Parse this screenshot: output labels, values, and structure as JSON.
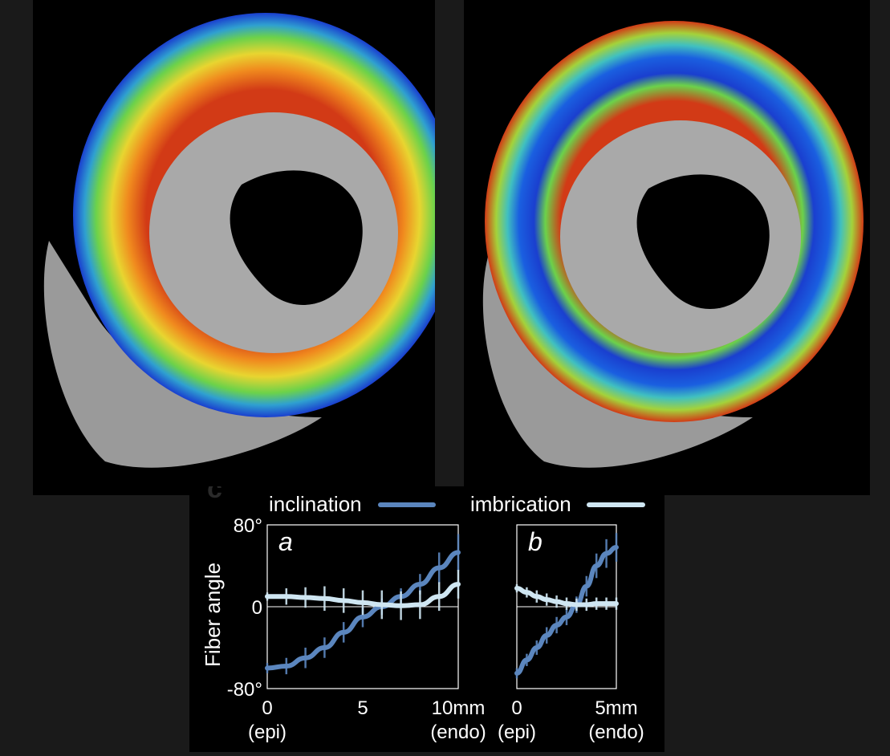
{
  "panel_label": "c",
  "colors": {
    "inclination": "#5b86be",
    "imbrication": "#cfe6f2",
    "axis": "#ffffff"
  },
  "chart_data": [
    {
      "type": "line",
      "panel": "a",
      "ylabel": "Fiber angle",
      "ylim": [
        -80,
        80
      ],
      "xlim": [
        0,
        10
      ],
      "xticks": [
        {
          "value": 0,
          "label": "0",
          "sub": "(epi)"
        },
        {
          "value": 5,
          "label": "5",
          "sub": ""
        },
        {
          "value": 10,
          "label": "10mm",
          "sub": "(endo)"
        }
      ],
      "yticks": [
        {
          "value": 80,
          "label": "80°"
        },
        {
          "value": 0,
          "label": "0"
        },
        {
          "value": -80,
          "label": "-80°"
        }
      ],
      "series": [
        {
          "name": "inclination",
          "x": [
            0,
            1,
            2,
            3,
            4,
            5,
            6,
            7,
            8,
            9,
            10
          ],
          "y": [
            -60,
            -58,
            -50,
            -40,
            -25,
            -10,
            0,
            10,
            22,
            38,
            53
          ],
          "err": [
            5,
            8,
            10,
            10,
            10,
            10,
            8,
            8,
            10,
            15,
            18
          ]
        },
        {
          "name": "imbrication",
          "x": [
            0,
            1,
            2,
            3,
            4,
            5,
            6,
            7,
            8,
            9,
            10
          ],
          "y": [
            10,
            10,
            9,
            8,
            6,
            4,
            2,
            1,
            2,
            10,
            22
          ],
          "err": [
            4,
            8,
            10,
            12,
            12,
            12,
            14,
            14,
            14,
            14,
            14
          ]
        }
      ]
    },
    {
      "type": "line",
      "panel": "b",
      "xlim": [
        0,
        5
      ],
      "ylim": [
        -80,
        80
      ],
      "xticks": [
        {
          "value": 0,
          "label": "0",
          "sub": "(epi)"
        },
        {
          "value": 5,
          "label": "5mm",
          "sub": "(endo)"
        }
      ],
      "series": [
        {
          "name": "inclination",
          "x": [
            0,
            0.5,
            1,
            1.5,
            2,
            2.5,
            3,
            3.5,
            4,
            4.5,
            5
          ],
          "y": [
            -65,
            -52,
            -40,
            -28,
            -18,
            -10,
            2,
            20,
            40,
            52,
            58
          ],
          "err": [
            5,
            6,
            7,
            8,
            8,
            8,
            8,
            10,
            12,
            14,
            14
          ]
        },
        {
          "name": "imbrication",
          "x": [
            0,
            0.5,
            1,
            1.5,
            2,
            2.5,
            3,
            3.5,
            4,
            4.5,
            5
          ],
          "y": [
            18,
            14,
            10,
            7,
            5,
            3,
            2,
            2,
            3,
            3,
            3
          ],
          "err": [
            4,
            5,
            6,
            6,
            6,
            6,
            6,
            6,
            6,
            6,
            6
          ]
        }
      ]
    }
  ]
}
